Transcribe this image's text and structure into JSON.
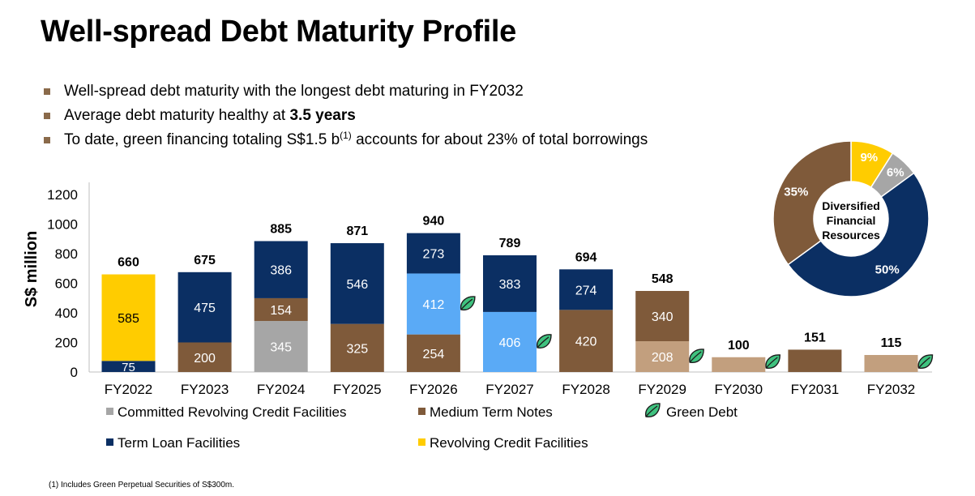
{
  "title": "Well-spread Debt Maturity Profile",
  "bullets": [
    {
      "text": "Well-spread debt maturity with the longest debt maturing in FY2032"
    },
    {
      "pre": "Average debt maturity healthy at ",
      "bold": "3.5 years"
    },
    {
      "pre": "To date, green financing totaling S$1.5 b",
      "sup": "(1)",
      "post": " accounts for about 23% of total borrowings"
    }
  ],
  "footnote": "(1)  Includes Green Perpetual Securities of S$300m.",
  "colors": {
    "committed_rcf": "#a6a6a6",
    "mtn": "#7f5a3a",
    "mtn_green": "#c29f7e",
    "term_loan": "#0b2f63",
    "term_loan_green": "#5aaaf6",
    "rcf": "#ffcc00",
    "leaf": "#3fc27f",
    "bullet": "#8a6a4a"
  },
  "chart_data": [
    {
      "type": "bar",
      "stacked": true,
      "ylabel": "S$ million",
      "ylim": [
        0,
        1200
      ],
      "yticks": [
        0,
        200,
        400,
        600,
        800,
        1000,
        1200
      ],
      "grid": false,
      "legend_position": "bottom",
      "categories": [
        "FY2022",
        "FY2023",
        "FY2024",
        "FY2025",
        "FY2026",
        "FY2027",
        "FY2028",
        "FY2029",
        "FY2030",
        "FY2031",
        "FY2032"
      ],
      "totals": [
        660,
        675,
        885,
        871,
        940,
        789,
        694,
        548,
        100,
        151,
        115
      ],
      "segments": [
        [
          {
            "series": "Term Loan Facilities",
            "value": 75,
            "color": "term_loan"
          },
          {
            "series": "Revolving Credit Facilities",
            "value": 585,
            "color": "rcf"
          }
        ],
        [
          {
            "series": "Medium Term Notes",
            "value": 200,
            "color": "mtn"
          },
          {
            "series": "Term Loan Facilities",
            "value": 475,
            "color": "term_loan"
          }
        ],
        [
          {
            "series": "Committed Revolving Credit Facilities",
            "value": 345,
            "color": "committed_rcf"
          },
          {
            "series": "Medium Term Notes",
            "value": 154,
            "color": "mtn"
          },
          {
            "series": "Term Loan Facilities",
            "value": 386,
            "color": "term_loan"
          }
        ],
        [
          {
            "series": "Medium Term Notes",
            "value": 325,
            "color": "mtn"
          },
          {
            "series": "Term Loan Facilities",
            "value": 546,
            "color": "term_loan"
          }
        ],
        [
          {
            "series": "Medium Term Notes",
            "value": 254,
            "color": "mtn"
          },
          {
            "series": "Term Loan Facilities",
            "value": 412,
            "color": "term_loan_green",
            "green": true
          },
          {
            "series": "Term Loan Facilities",
            "value": 273,
            "color": "term_loan"
          }
        ],
        [
          {
            "series": "Term Loan Facilities",
            "value": 406,
            "color": "term_loan_green",
            "green": true
          },
          {
            "series": "Term Loan Facilities",
            "value": 383,
            "color": "term_loan"
          }
        ],
        [
          {
            "series": "Medium Term Notes",
            "value": 420,
            "color": "mtn"
          },
          {
            "series": "Term Loan Facilities",
            "value": 274,
            "color": "term_loan"
          }
        ],
        [
          {
            "series": "Medium Term Notes",
            "value": 208,
            "color": "mtn_green",
            "green": true
          },
          {
            "series": "Medium Term Notes",
            "value": 340,
            "color": "mtn"
          }
        ],
        [
          {
            "series": "Medium Term Notes",
            "value": 100,
            "color": "mtn_green",
            "green": true,
            "nolabel": true
          }
        ],
        [
          {
            "series": "Medium Term Notes",
            "value": 151,
            "color": "mtn",
            "nolabel": true
          }
        ],
        [
          {
            "series": "Medium Term Notes",
            "value": 115,
            "color": "mtn_green",
            "green": true,
            "nolabel": true
          }
        ]
      ],
      "legend": [
        {
          "label": "Committed Revolving Credit Facilities",
          "color": "committed_rcf",
          "icon": "square"
        },
        {
          "label": "Medium Term Notes",
          "color": "mtn",
          "icon": "square"
        },
        {
          "label": "Green Debt",
          "color": "leaf",
          "icon": "leaf-icon"
        },
        {
          "label": "Term Loan Facilities",
          "color": "term_loan",
          "icon": "square"
        },
        {
          "label": "Revolving Credit Facilities",
          "color": "rcf",
          "icon": "square"
        }
      ]
    },
    {
      "type": "pie",
      "donut": true,
      "center_label": "Diversified Financial Resources",
      "slices": [
        {
          "value": 9,
          "label": "9%",
          "color": "rcf"
        },
        {
          "value": 6,
          "label": "6%",
          "color": "committed_rcf"
        },
        {
          "value": 50,
          "label": "50%",
          "color": "term_loan"
        },
        {
          "value": 35,
          "label": "35%",
          "color": "mtn"
        }
      ]
    }
  ]
}
